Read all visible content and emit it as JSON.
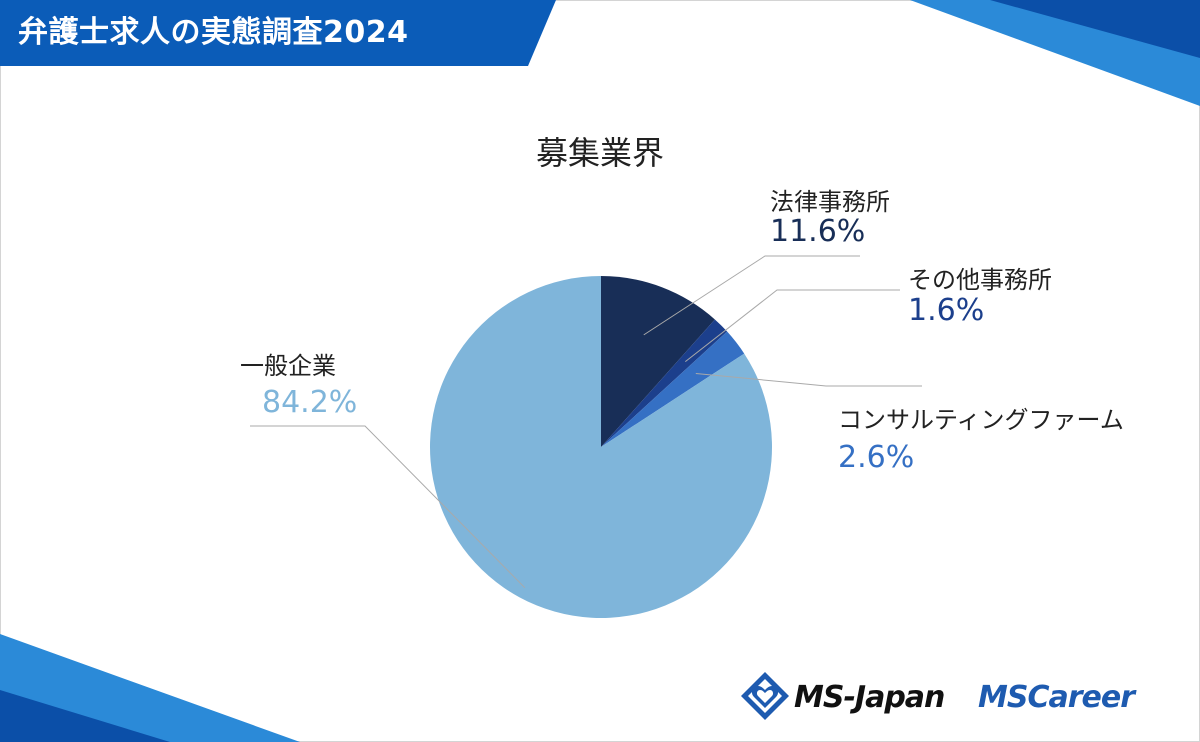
{
  "header": {
    "title": "弁護士求人の実態調査2024"
  },
  "colors": {
    "header_bg": "#0b5cb8",
    "accent_light": "#2b8ad8",
    "slice_law": "#182e57",
    "slice_other": "#1c3f8c",
    "slice_consulting": "#3570c4",
    "slice_general": "#7fb5da"
  },
  "chart_data": {
    "type": "pie",
    "title": "募集業界",
    "unit": "%",
    "slices": [
      {
        "label": "法律事務所",
        "value": 11.6,
        "display": "11.6%",
        "color": "#182e57"
      },
      {
        "label": "その他事務所",
        "value": 1.6,
        "display": "1.6%",
        "color": "#1c3f8c"
      },
      {
        "label": "コンサルティングファーム",
        "value": 2.6,
        "display": "2.6%",
        "color": "#3570c4"
      },
      {
        "label": "一般企業",
        "value": 84.2,
        "display": "84.2%",
        "color": "#7fb5da"
      }
    ],
    "start": "12 o'clock",
    "direction": "clockwise",
    "legend": "none",
    "data_labels": "outside with leader lines"
  },
  "logos": {
    "ms_japan": "MS-Japan",
    "ms_career": "MSCareer",
    "mark_icon": "heart-diamond-icon"
  }
}
